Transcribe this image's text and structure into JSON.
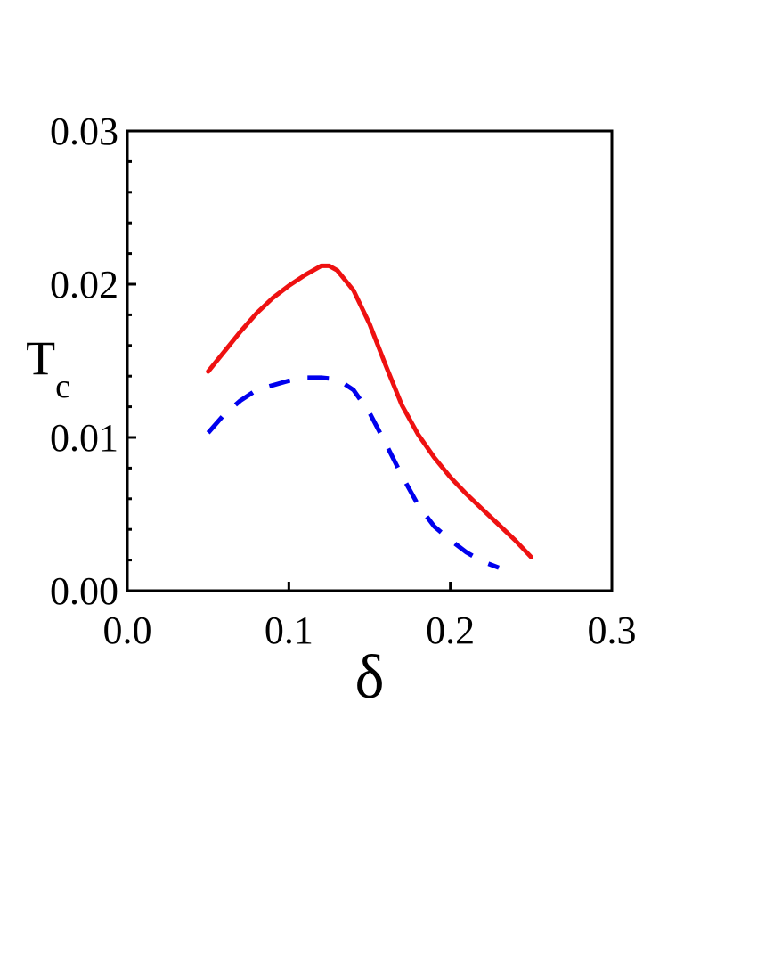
{
  "chart_data": {
    "type": "line",
    "xlabel": "δ",
    "ylabel": {
      "main": "T",
      "subscript": "c"
    },
    "xlim": [
      0.0,
      0.3
    ],
    "ylim": [
      0.0,
      0.03
    ],
    "x_ticks": [
      "0.0",
      "0.1",
      "0.2",
      "0.3"
    ],
    "y_ticks": [
      "0.00",
      "0.01",
      "0.02",
      "0.03"
    ],
    "grid": false,
    "legend": "none",
    "series": [
      {
        "style": "solid",
        "color": "#ee1111",
        "x": [
          0.05,
          0.06,
          0.07,
          0.08,
          0.09,
          0.1,
          0.11,
          0.12,
          0.125,
          0.13,
          0.14,
          0.15,
          0.16,
          0.17,
          0.18,
          0.19,
          0.2,
          0.21,
          0.22,
          0.23,
          0.24,
          0.25
        ],
        "y": [
          0.0143,
          0.0156,
          0.0169,
          0.0181,
          0.0191,
          0.0199,
          0.0206,
          0.0212,
          0.0212,
          0.0209,
          0.0196,
          0.0174,
          0.0147,
          0.0121,
          0.0102,
          0.0087,
          0.0074,
          0.0063,
          0.0053,
          0.0043,
          0.0033,
          0.0022
        ]
      },
      {
        "style": "dashed",
        "color": "#0000ee",
        "x": [
          0.05,
          0.06,
          0.07,
          0.08,
          0.09,
          0.1,
          0.11,
          0.12,
          0.13,
          0.14,
          0.15,
          0.16,
          0.17,
          0.18,
          0.19,
          0.2,
          0.21,
          0.22,
          0.23
        ],
        "y": [
          0.0103,
          0.0115,
          0.0124,
          0.0131,
          0.0134,
          0.0137,
          0.0139,
          0.0139,
          0.0138,
          0.0131,
          0.0116,
          0.0096,
          0.0075,
          0.0056,
          0.0042,
          0.0033,
          0.0025,
          0.0019,
          0.0015
        ]
      }
    ]
  }
}
